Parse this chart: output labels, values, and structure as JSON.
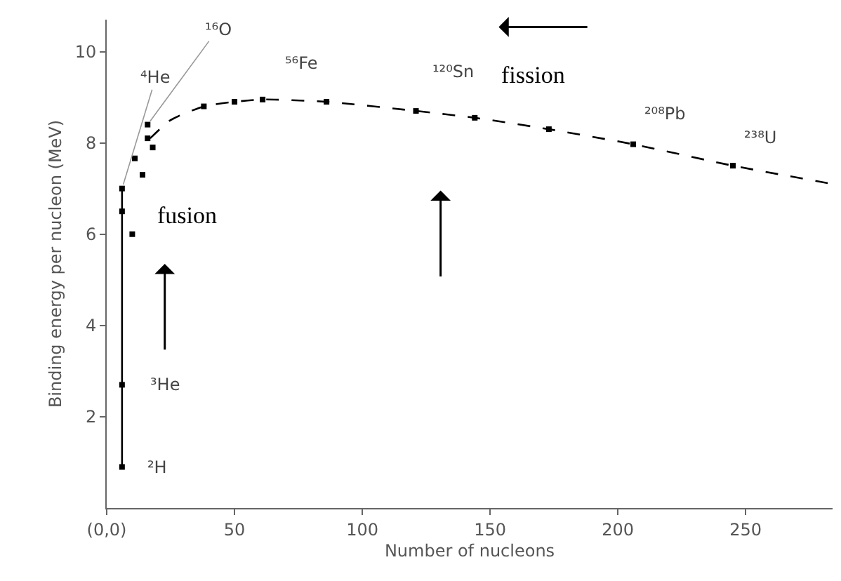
{
  "chart_data": {
    "type": "scatter",
    "xlabel": "Number of nucleons",
    "ylabel": "Binding energy per nucleon (MeV)",
    "xlim": [
      0,
      284
    ],
    "ylim": [
      0,
      10.7
    ],
    "xticks": [
      {
        "value": 0,
        "label": "(0,0)"
      },
      50,
      100,
      150,
      200,
      250
    ],
    "yticks": [
      2,
      4,
      6,
      8,
      10
    ],
    "series": [
      {
        "type": "line",
        "line_style": "solid",
        "marker": "none",
        "color": "#000000",
        "x": [
          6,
          6
        ],
        "values": [
          0.9,
          7.0
        ]
      },
      {
        "type": "line",
        "line_style": "dashed",
        "marker": "none",
        "color": "#000000",
        "x": [
          17,
          25,
          38,
          50,
          61,
          86,
          121,
          144,
          173,
          206,
          245,
          284
        ],
        "values": [
          8.1,
          8.5,
          8.8,
          8.9,
          8.95,
          8.9,
          8.7,
          8.55,
          8.3,
          7.97,
          7.5,
          7.1
        ]
      },
      {
        "marker": "square",
        "color": "#000000",
        "x": [
          6,
          6,
          6,
          6,
          10,
          11,
          14,
          16,
          16,
          18,
          38,
          50,
          61,
          86,
          121,
          144,
          173,
          206,
          245
        ],
        "values": [
          0.9,
          2.7,
          6.5,
          7.0,
          6.0,
          7.66,
          7.3,
          8.4,
          8.1,
          7.9,
          8.8,
          8.9,
          8.95,
          8.9,
          8.7,
          8.55,
          8.3,
          7.97,
          7.5
        ]
      }
    ],
    "annotations": [
      {
        "text": "²H",
        "x": 6,
        "y": 0.9
      },
      {
        "text": "³He",
        "x": 6,
        "y": 2.7
      },
      {
        "text": "⁴He",
        "x": 6,
        "y": 7.0
      },
      {
        "text": "¹⁶O",
        "x": 16,
        "y": 8.4
      },
      {
        "text": "⁵⁶Fe",
        "x": 61,
        "y": 8.95
      },
      {
        "text": "¹²⁰Sn",
        "x": 121,
        "y": 8.7
      },
      {
        "text": "²⁰⁸Pb",
        "x": 206,
        "y": 7.97
      },
      {
        "text": "²³⁸U",
        "x": 245,
        "y": 7.5
      },
      "fusion",
      "fission"
    ]
  }
}
